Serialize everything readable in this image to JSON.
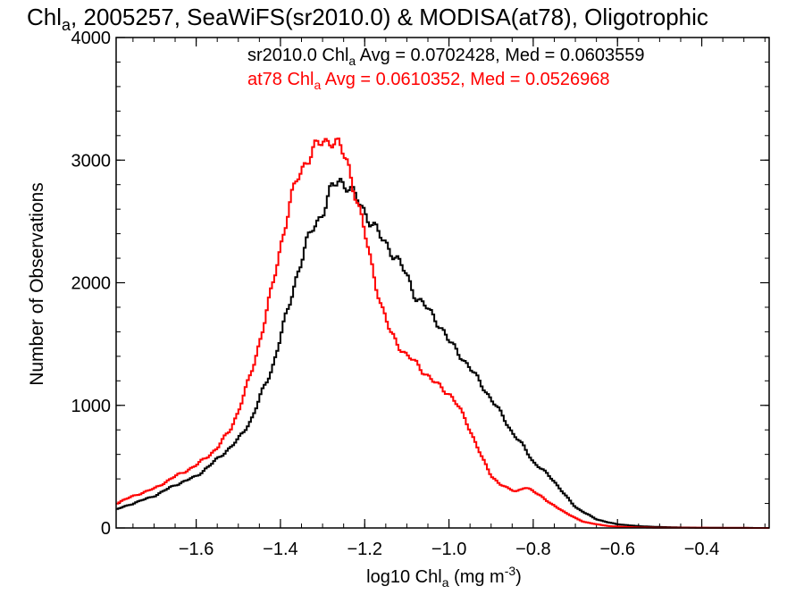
{
  "chart_data": {
    "type": "line",
    "title": {
      "prefix": "Chl",
      "sub": "a",
      "rest": ", 2005257, SeaWiFS(sr2010.0) & MODISA(at78), Oligotrophic"
    },
    "xlabel": {
      "prefix": "log10 Chl",
      "sub": "a",
      "mid": " (mg m",
      "sup": "-3",
      "end": ")"
    },
    "ylabel": "Number of Observations",
    "xlim": [
      -1.79,
      -0.24
    ],
    "ylim": [
      0,
      4000
    ],
    "x_ticks": [
      -1.6,
      -1.4,
      -1.2,
      -1.0,
      -0.8,
      -0.6,
      -0.4
    ],
    "x_tick_labels": [
      "−1.6",
      "−1.4",
      "−1.2",
      "−1.0",
      "−0.8",
      "−0.6",
      "−0.4"
    ],
    "y_ticks": [
      0,
      1000,
      2000,
      3000,
      4000
    ],
    "y_tick_labels": [
      "0",
      "1000",
      "2000",
      "3000",
      "4000"
    ],
    "step": "histogram",
    "series": [
      {
        "color": "#000000",
        "stats_label": {
          "prefix": "sr2010.0 Chl",
          "sub": "a",
          "rest": " Avg = 0.0702428, Med = 0.0603559"
        },
        "points": [
          [
            -1.79,
            150
          ],
          [
            -1.75,
            200
          ],
          [
            -1.7,
            260
          ],
          [
            -1.65,
            350
          ],
          [
            -1.6,
            420
          ],
          [
            -1.55,
            560
          ],
          [
            -1.5,
            720
          ],
          [
            -1.47,
            880
          ],
          [
            -1.45,
            1050
          ],
          [
            -1.42,
            1300
          ],
          [
            -1.4,
            1560
          ],
          [
            -1.38,
            1800
          ],
          [
            -1.36,
            2080
          ],
          [
            -1.34,
            2300
          ],
          [
            -1.32,
            2460
          ],
          [
            -1.3,
            2580
          ],
          [
            -1.28,
            2750
          ],
          [
            -1.26,
            2840
          ],
          [
            -1.24,
            2800
          ],
          [
            -1.22,
            2680
          ],
          [
            -1.2,
            2580
          ],
          [
            -1.18,
            2480
          ],
          [
            -1.16,
            2350
          ],
          [
            -1.14,
            2280
          ],
          [
            -1.12,
            2180
          ],
          [
            -1.1,
            2050
          ],
          [
            -1.08,
            1900
          ],
          [
            -1.05,
            1780
          ],
          [
            -1.02,
            1650
          ],
          [
            -1.0,
            1520
          ],
          [
            -0.97,
            1400
          ],
          [
            -0.95,
            1300
          ],
          [
            -0.92,
            1160
          ],
          [
            -0.9,
            1050
          ],
          [
            -0.87,
            900
          ],
          [
            -0.85,
            780
          ],
          [
            -0.82,
            650
          ],
          [
            -0.8,
            540
          ],
          [
            -0.77,
            450
          ],
          [
            -0.75,
            380
          ],
          [
            -0.72,
            250
          ],
          [
            -0.7,
            170
          ],
          [
            -0.67,
            110
          ],
          [
            -0.65,
            70
          ],
          [
            -0.62,
            45
          ],
          [
            -0.6,
            30
          ],
          [
            -0.55,
            15
          ],
          [
            -0.5,
            8
          ],
          [
            -0.45,
            4
          ],
          [
            -0.4,
            2
          ],
          [
            -0.35,
            1
          ],
          [
            -0.24,
            0
          ]
        ]
      },
      {
        "color": "#ff0000",
        "stats_label": {
          "prefix": "at78 Chl",
          "sub": "a",
          "rest": " Avg = 0.0610352, Med = 0.0526968"
        },
        "points": [
          [
            -1.79,
            200
          ],
          [
            -1.75,
            260
          ],
          [
            -1.7,
            320
          ],
          [
            -1.65,
            420
          ],
          [
            -1.6,
            510
          ],
          [
            -1.55,
            650
          ],
          [
            -1.52,
            800
          ],
          [
            -1.5,
            950
          ],
          [
            -1.48,
            1150
          ],
          [
            -1.46,
            1380
          ],
          [
            -1.44,
            1650
          ],
          [
            -1.42,
            1950
          ],
          [
            -1.4,
            2300
          ],
          [
            -1.38,
            2600
          ],
          [
            -1.36,
            2850
          ],
          [
            -1.34,
            3000
          ],
          [
            -1.32,
            3080
          ],
          [
            -1.3,
            3150
          ],
          [
            -1.28,
            3180
          ],
          [
            -1.26,
            3100
          ],
          [
            -1.24,
            2980
          ],
          [
            -1.22,
            2700
          ],
          [
            -1.2,
            2400
          ],
          [
            -1.18,
            2100
          ],
          [
            -1.16,
            1800
          ],
          [
            -1.14,
            1600
          ],
          [
            -1.12,
            1500
          ],
          [
            -1.1,
            1400
          ],
          [
            -1.08,
            1350
          ],
          [
            -1.06,
            1280
          ],
          [
            -1.04,
            1200
          ],
          [
            -1.02,
            1150
          ],
          [
            -1.0,
            1100
          ],
          [
            -0.98,
            1000
          ],
          [
            -0.96,
            880
          ],
          [
            -0.94,
            720
          ],
          [
            -0.92,
            560
          ],
          [
            -0.9,
            430
          ],
          [
            -0.88,
            360
          ],
          [
            -0.86,
            320
          ],
          [
            -0.84,
            300
          ],
          [
            -0.82,
            330
          ],
          [
            -0.8,
            300
          ],
          [
            -0.78,
            260
          ],
          [
            -0.76,
            200
          ],
          [
            -0.74,
            160
          ],
          [
            -0.72,
            120
          ],
          [
            -0.7,
            80
          ],
          [
            -0.68,
            50
          ],
          [
            -0.65,
            30
          ],
          [
            -0.62,
            15
          ],
          [
            -0.58,
            8
          ],
          [
            -0.55,
            4
          ],
          [
            -0.5,
            2
          ],
          [
            -0.24,
            0
          ]
        ]
      }
    ]
  }
}
